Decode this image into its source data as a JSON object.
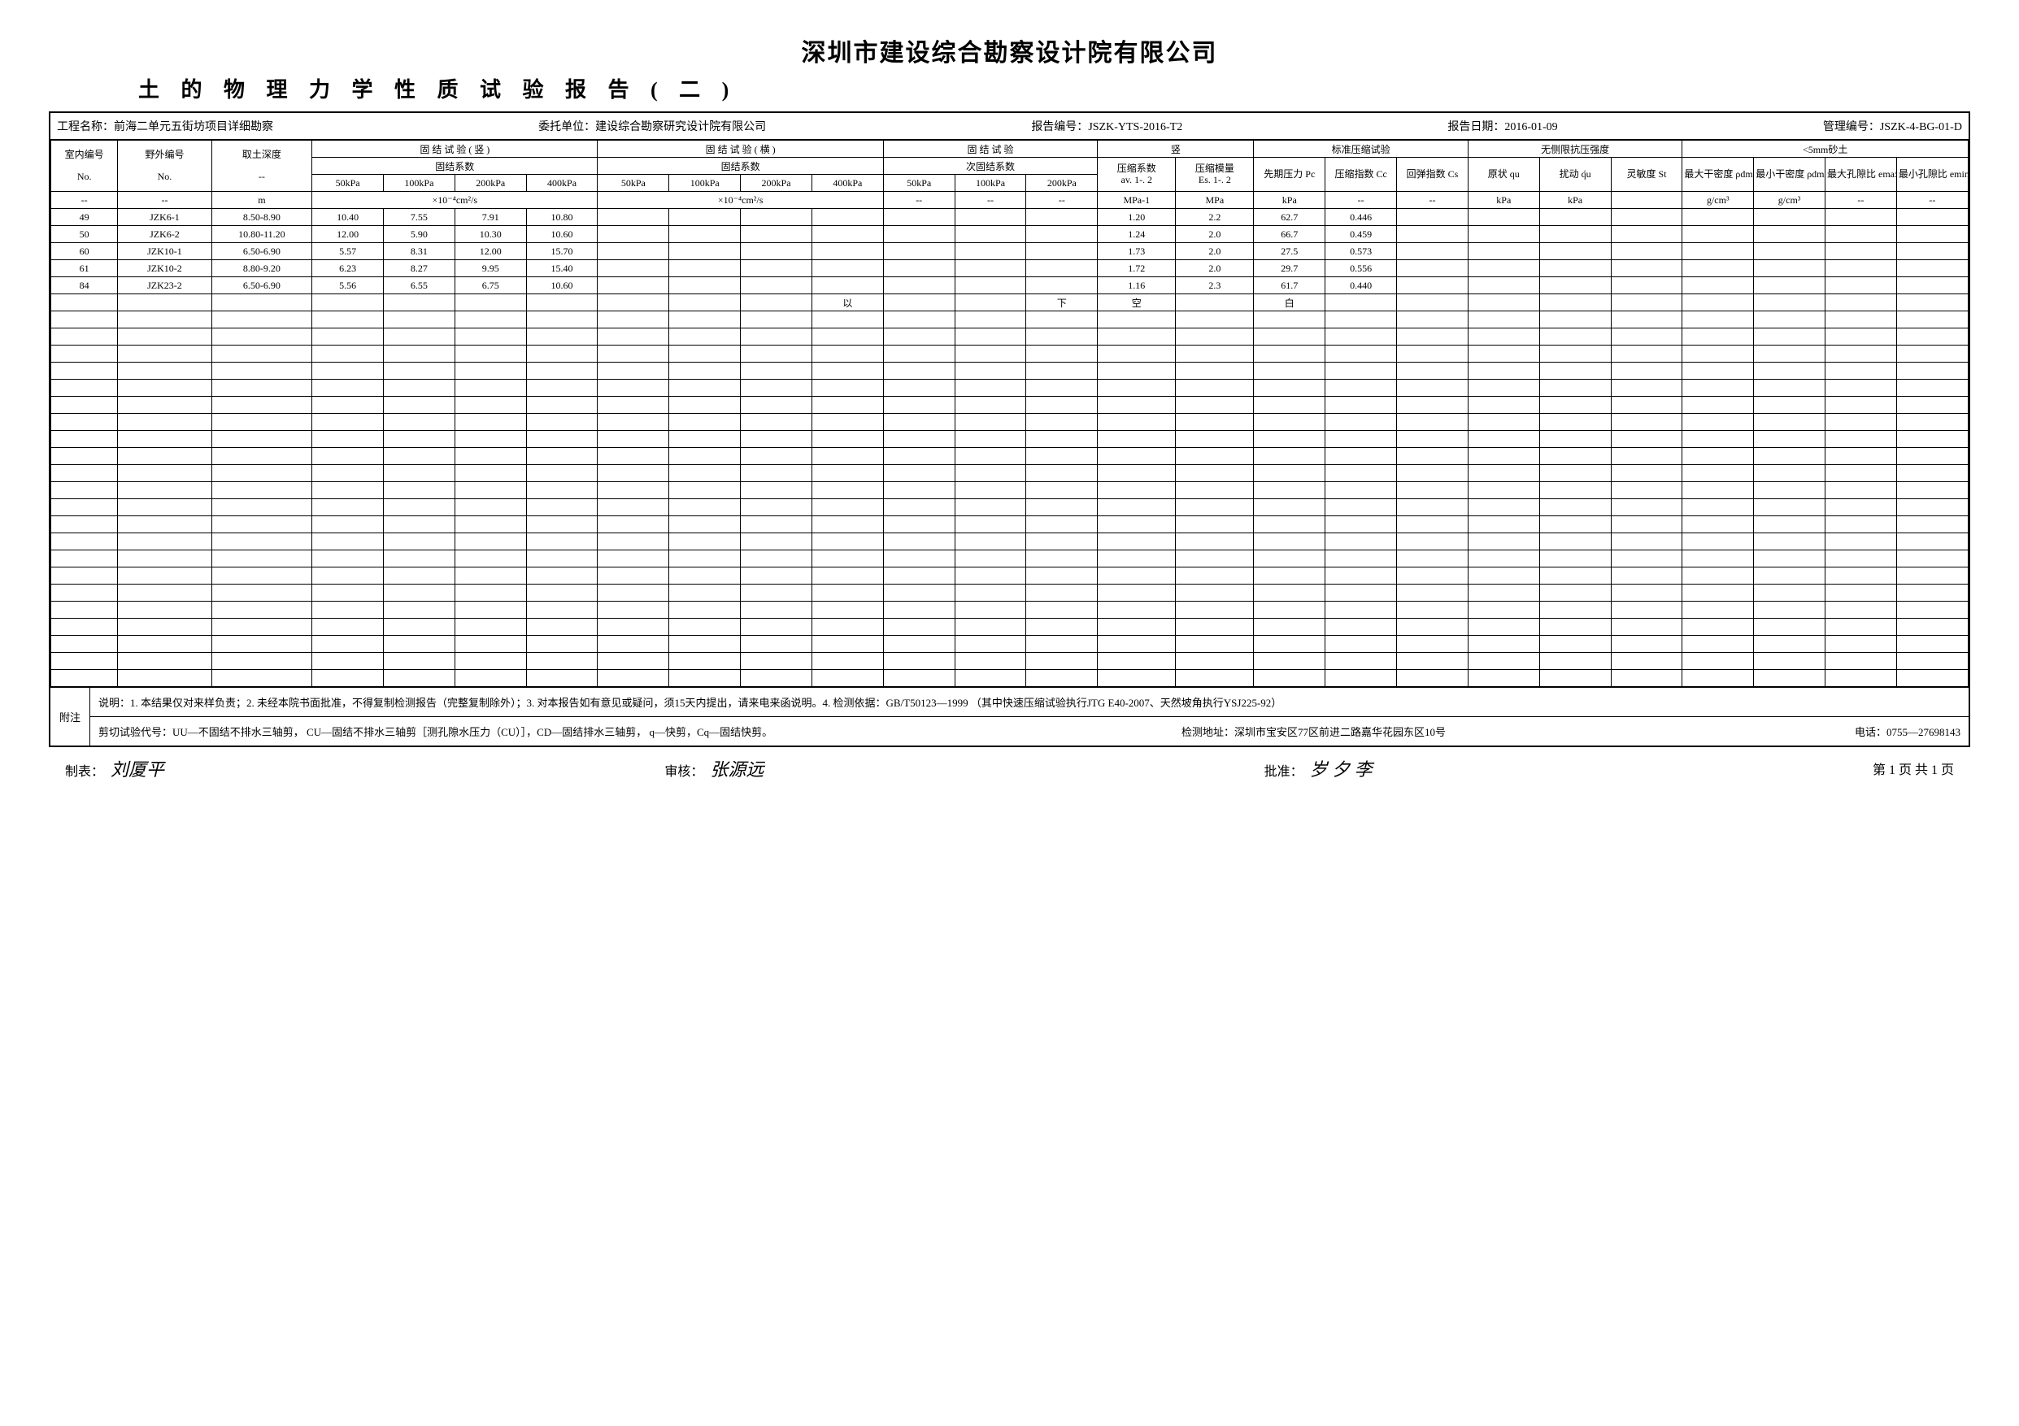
{
  "titles": {
    "main": "深圳市建设综合勘察设计院有限公司",
    "sub": "土 的 物 理 力 学 性 质 试 验 报 告 ( 二 )"
  },
  "info": {
    "project_label": "工程名称：",
    "project": "前海二单元五街坊项目详细勘察",
    "client_label": "委托单位：",
    "client": "建设综合勘察研究设计院有限公司",
    "report_no_label": "报告编号：",
    "report_no": "JSZK-YTS-2016-T2",
    "report_date_label": "报告日期：",
    "report_date": "2016-01-09",
    "manage_no_label": "管理编号：",
    "manage_no": "JSZK-4-BG-01-D"
  },
  "headers": {
    "col1": "室内编号",
    "col1_sub": "No.",
    "col2": "野外编号",
    "col2_sub": "No.",
    "col3": "取土深度",
    "col3_sub": "--",
    "group_vert": "固 结 试 验 ( 竖 )",
    "group_vert_sub": "固结系数",
    "group_horiz": "固 结 试 验 ( 横 )",
    "group_horiz_sub": "固结系数",
    "group_cons": "固  结  试  验",
    "group_cons_sub": "次固结系数",
    "kpa": [
      "50kPa",
      "100kPa",
      "200kPa",
      "400kPa"
    ],
    "kpa3": [
      "50kPa",
      "100kPa",
      "200kPa"
    ],
    "std_label": "标准压缩试验",
    "comp_coef": "压缩系数",
    "comp_coef_sub": "av. 1-. 2",
    "comp_mod": "压缩模量",
    "comp_mod_sub": "Es. 1-. 2",
    "pre_press": "先期压力 Pc",
    "comp_idx": "压缩指数 Cc",
    "rebound_idx": "回弹指数 Cs",
    "unconf_label": "无侧限抗压强度",
    "orig": "原状 qu",
    "disturb": "扰动 q́u",
    "sens": "灵敏度 St",
    "sand_label": "<5mm砂土",
    "max_dry": "最大干密度 ρdmax",
    "min_dry": "最小干密度 ρdmin",
    "max_void": "最大孔隙比 emax",
    "min_void": "最小孔隙比 emin",
    "vert_label_top": "竖"
  },
  "unit_row": {
    "c1": "--",
    "c2": "--",
    "c3": "m",
    "vert_unit": "×10⁻⁴cm²/s",
    "horiz_unit": "×10⁻⁴cm²/s",
    "cons_units": [
      "--",
      "--",
      "--"
    ],
    "av": "MPa-1",
    "es": "MPa",
    "pc": "kPa",
    "cc": "--",
    "cs": "--",
    "qu": "kPa",
    "qu2": "kPa",
    "st": "",
    "rho1": "g/cm³",
    "rho2": "g/cm³",
    "e1": "--",
    "e2": "--"
  },
  "rows": [
    {
      "no": "49",
      "id": "JZK6-1",
      "depth": "8.50-8.90",
      "v": [
        "10.40",
        "7.55",
        "7.91",
        "10.80"
      ],
      "av": "1.20",
      "es": "2.2",
      "pc": "62.7",
      "cc": "0.446"
    },
    {
      "no": "50",
      "id": "JZK6-2",
      "depth": "10.80-11.20",
      "v": [
        "12.00",
        "5.90",
        "10.30",
        "10.60"
      ],
      "av": "1.24",
      "es": "2.0",
      "pc": "66.7",
      "cc": "0.459"
    },
    {
      "no": "60",
      "id": "JZK10-1",
      "depth": "6.50-6.90",
      "v": [
        "5.57",
        "8.31",
        "12.00",
        "15.70"
      ],
      "av": "1.73",
      "es": "2.0",
      "pc": "27.5",
      "cc": "0.573"
    },
    {
      "no": "61",
      "id": "JZK10-2",
      "depth": "8.80-9.20",
      "v": [
        "6.23",
        "8.27",
        "9.95",
        "15.40"
      ],
      "av": "1.72",
      "es": "2.0",
      "pc": "29.7",
      "cc": "0.556"
    },
    {
      "no": "84",
      "id": "JZK23-2",
      "depth": "6.50-6.90",
      "v": [
        "5.56",
        "6.55",
        "6.75",
        "10.60"
      ],
      "av": "1.16",
      "es": "2.3",
      "pc": "61.7",
      "cc": "0.440"
    }
  ],
  "marker_row": {
    "yi": "以",
    "xia": "下",
    "kong": "空",
    "bai": "白"
  },
  "empty_rows": 22,
  "notes": {
    "label": "附注",
    "line1": "说明：1. 本结果仅对来样负责；2. 未经本院书面批准，不得复制检测报告（完整复制除外）；3. 对本报告如有意见或疑问，须15天内提出，请来电来函说明。4. 检测依据：GB/T50123—1999 （其中快速压缩试验执行JTG E40-2007、天然坡角执行YSJ225-92）",
    "line2_left": "剪切试验代号：UU—不固结不排水三轴剪，  CU—固结不排水三轴剪［测孔隙水压力（CU）］，CD—固结排水三轴剪，  q—快剪，Cq—固结快剪。",
    "line2_mid": "检测地址：深圳市宝安区77区前进二路嘉华花园东区10号",
    "line2_right": "电话：0755—27698143"
  },
  "footer": {
    "maker_label": "制表：",
    "maker_sig": "刘厦平",
    "review_label": "审核：",
    "review_sig": "张源远",
    "approve_label": "批准：",
    "approve_sig": "岁 夕 李",
    "page": "第  1 页  共 1  页"
  }
}
